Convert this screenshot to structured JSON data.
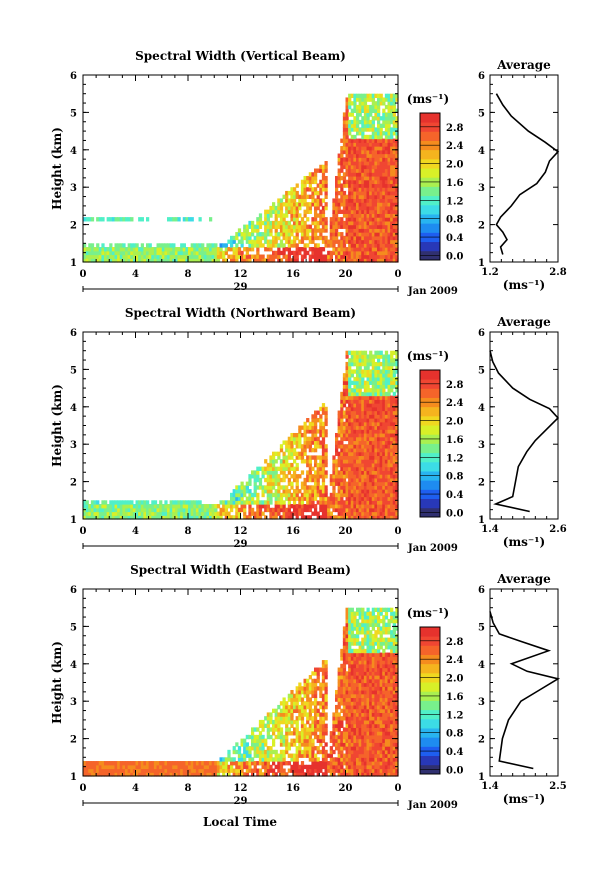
{
  "figure": {
    "xlabel": "Local Time",
    "date_label": "Jan 2009",
    "day_label": "29",
    "colorbar_unit": "(ms⁻¹)",
    "average_title": "Average",
    "average_unit": "(ms⁻¹)",
    "ylabel": "Height (km)"
  },
  "colorbar": {
    "ticks": [
      "0.0",
      "0.4",
      "0.8",
      "1.2",
      "1.6",
      "2.0",
      "2.4",
      "2.8"
    ],
    "colors": [
      "#303070",
      "#2838b8",
      "#1e5ef0",
      "#1e8cf0",
      "#28b4f0",
      "#3cdce6",
      "#50f0c8",
      "#78f08c",
      "#aaf050",
      "#d8f028",
      "#f0d820",
      "#f5b41e",
      "#f58c1e",
      "#f5642a",
      "#f04632",
      "#e6322d"
    ]
  },
  "chart_data": [
    {
      "type": "heatmap",
      "title": "Spectral Width (Vertical Beam)",
      "x_ticks": [
        "0",
        "4",
        "8",
        "12",
        "16",
        "20",
        "0"
      ],
      "y_ticks": [
        "1",
        "2",
        "3",
        "4",
        "5",
        "6"
      ],
      "xlim": [
        0,
        24
      ],
      "ylim": [
        1,
        6
      ],
      "average": {
        "type": "line",
        "x_ticks": [
          "1.2",
          "2.8"
        ],
        "xlim": [
          1.2,
          2.8
        ],
        "y_ticks": [
          "1",
          "2",
          "3",
          "4",
          "5",
          "6"
        ],
        "ylim": [
          1,
          6
        ],
        "points": [
          [
            1.5,
            1.2
          ],
          [
            1.45,
            1.4
          ],
          [
            1.6,
            1.6
          ],
          [
            1.5,
            1.8
          ],
          [
            1.35,
            2.0
          ],
          [
            1.45,
            2.2
          ],
          [
            1.7,
            2.5
          ],
          [
            1.9,
            2.8
          ],
          [
            2.3,
            3.1
          ],
          [
            2.5,
            3.4
          ],
          [
            2.6,
            3.7
          ],
          [
            2.8,
            3.95
          ],
          [
            2.5,
            4.2
          ],
          [
            2.1,
            4.5
          ],
          [
            1.7,
            4.9
          ],
          [
            1.5,
            5.2
          ],
          [
            1.35,
            5.5
          ]
        ]
      }
    },
    {
      "type": "heatmap",
      "title": "Spectral Width (Northward Beam)",
      "x_ticks": [
        "0",
        "4",
        "8",
        "12",
        "16",
        "20",
        "0"
      ],
      "y_ticks": [
        "1",
        "2",
        "3",
        "4",
        "5",
        "6"
      ],
      "xlim": [
        0,
        24
      ],
      "ylim": [
        1,
        6
      ],
      "average": {
        "type": "line",
        "x_ticks": [
          "1.4",
          "2.6"
        ],
        "xlim": [
          1.4,
          2.6
        ],
        "y_ticks": [
          "1",
          "2",
          "3",
          "4",
          "5",
          "6"
        ],
        "ylim": [
          1,
          6
        ],
        "points": [
          [
            2.1,
            1.2
          ],
          [
            1.5,
            1.4
          ],
          [
            1.8,
            1.6
          ],
          [
            1.85,
            2.0
          ],
          [
            1.9,
            2.4
          ],
          [
            2.05,
            2.8
          ],
          [
            2.2,
            3.1
          ],
          [
            2.4,
            3.4
          ],
          [
            2.6,
            3.7
          ],
          [
            2.45,
            3.95
          ],
          [
            2.1,
            4.2
          ],
          [
            1.8,
            4.5
          ],
          [
            1.55,
            4.9
          ],
          [
            1.45,
            5.2
          ],
          [
            1.4,
            5.5
          ]
        ]
      }
    },
    {
      "type": "heatmap",
      "title": "Spectral Width (Eastward Beam)",
      "x_ticks": [
        "0",
        "4",
        "8",
        "12",
        "16",
        "20",
        "0"
      ],
      "y_ticks": [
        "1",
        "2",
        "3",
        "4",
        "5",
        "6"
      ],
      "xlim": [
        0,
        24
      ],
      "ylim": [
        1,
        6
      ],
      "average": {
        "type": "line",
        "x_ticks": [
          "1.4",
          "2.5"
        ],
        "xlim": [
          1.4,
          2.5
        ],
        "y_ticks": [
          "1",
          "2",
          "3",
          "4",
          "5",
          "6"
        ],
        "ylim": [
          1,
          6
        ],
        "points": [
          [
            2.1,
            1.2
          ],
          [
            1.55,
            1.4
          ],
          [
            1.6,
            2.0
          ],
          [
            1.7,
            2.5
          ],
          [
            1.9,
            3.0
          ],
          [
            2.2,
            3.3
          ],
          [
            2.5,
            3.6
          ],
          [
            2.0,
            3.8
          ],
          [
            1.75,
            4.0
          ],
          [
            2.35,
            4.35
          ],
          [
            1.9,
            4.6
          ],
          [
            1.55,
            4.8
          ],
          [
            1.45,
            5.1
          ],
          [
            1.4,
            5.4
          ]
        ]
      }
    }
  ]
}
